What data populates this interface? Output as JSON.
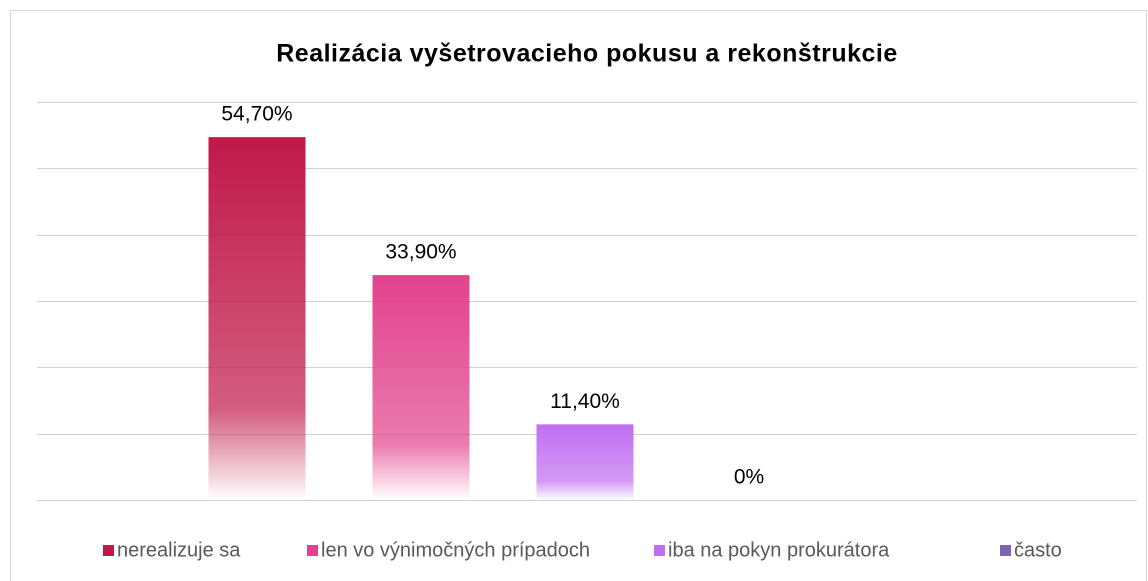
{
  "chart_data": {
    "type": "bar",
    "title": "Realizácia vyšetrovacieho pokusu a rekonštrukcie",
    "series": [
      {
        "name": "nerealizuje sa",
        "color": "#c0184a",
        "values": [
          54.7
        ],
        "value_labels": [
          "54,70%"
        ]
      },
      {
        "name": "len vo výnimočných prípadoch",
        "color": "#e2428c",
        "values": [
          33.9
        ],
        "value_labels": [
          "33,90%"
        ]
      },
      {
        "name": "iba na pokyn prokurátora",
        "color": "#c06ef0",
        "values": [
          11.4
        ],
        "value_labels": [
          "11,40%"
        ]
      },
      {
        "name": "často",
        "color": "#7f62b4",
        "values": [
          0
        ],
        "value_labels": [
          "0%"
        ]
      }
    ],
    "ylim": [
      0,
      60
    ],
    "yticks": [
      0,
      10,
      20,
      30,
      40,
      50,
      60
    ],
    "grid": true,
    "legend": "bottom"
  }
}
